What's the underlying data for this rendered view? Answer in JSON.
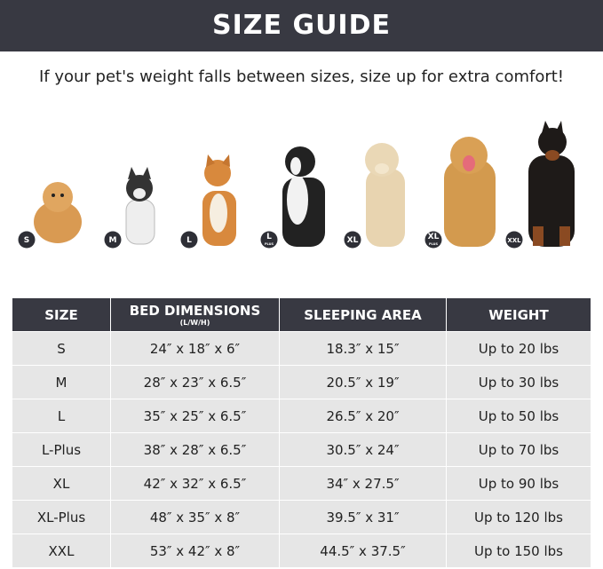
{
  "header": {
    "title": "SIZE GUIDE"
  },
  "subtitle": "If your pet's weight falls between sizes, size up for extra comfort!",
  "badges": [
    {
      "label": "S"
    },
    {
      "label": "M"
    },
    {
      "label": "L"
    },
    {
      "label": "L",
      "sub": "PLUS"
    },
    {
      "label": "XL"
    },
    {
      "label": "XL",
      "sub": "PLUS"
    },
    {
      "label": "XXL"
    }
  ],
  "table": {
    "columns": [
      {
        "title": "SIZE"
      },
      {
        "title": "BED DIMENSIONS",
        "subtitle": "(L/W/H)"
      },
      {
        "title": "SLEEPING AREA"
      },
      {
        "title": "WEIGHT"
      }
    ],
    "rows": [
      [
        "S",
        "24″ x 18″ x 6″",
        "18.3″ x 15″",
        "Up to 20 lbs"
      ],
      [
        "M",
        "28″ x 23″ x 6.5″",
        "20.5″ x 19″",
        "Up to 30 lbs"
      ],
      [
        "L",
        "35″ x 25″ x 6.5″",
        "26.5″ x 20″",
        "Up to 50 lbs"
      ],
      [
        "L-Plus",
        "38″ x 28″ x 6.5″",
        "30.5″ x 24″",
        "Up to 70 lbs"
      ],
      [
        "XL",
        "42″ x 32″ x 6.5″",
        "34″ x 27.5″",
        "Up to 90 lbs"
      ],
      [
        "XL-Plus",
        "48″ x 35″ x 8″",
        "39.5″ x 31″",
        "Up to 120 lbs"
      ],
      [
        "XXL",
        "53″ x 42″ x 8″",
        "44.5″ x 37.5″",
        "Up to 150 lbs"
      ]
    ]
  }
}
